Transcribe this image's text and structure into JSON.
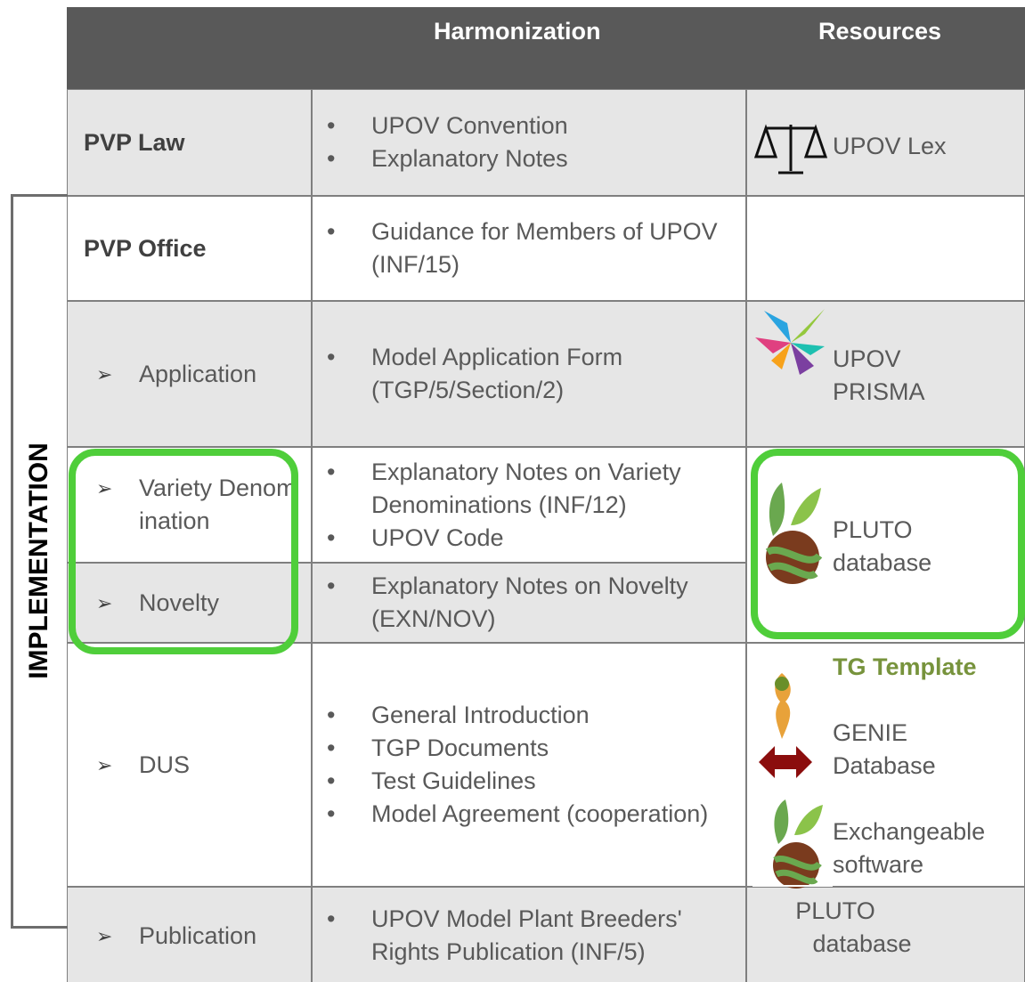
{
  "header": {
    "harmonization": "Harmonization",
    "resources": "Resources"
  },
  "side_label": "IMPLEMENTATION",
  "rows": [
    {
      "label": "PVP Law",
      "bullets": [
        "UPOV Convention",
        "Explanatory Notes"
      ],
      "resources": [
        "UPOV Lex"
      ]
    },
    {
      "label": "PVP Office",
      "bullets": [
        "Guidance for Members of UPOV (INF/15)"
      ],
      "resources": []
    },
    {
      "label": "Application",
      "bullets": [
        "Model Application Form (TGP/5/Section/2)"
      ],
      "resources": [
        "UPOV PRISMA"
      ]
    },
    {
      "label": "Variety Denomination",
      "bullets": [
        "Explanatory Notes on Variety Denominations (INF/12)",
        "UPOV Code"
      ],
      "resources": [
        "PLUTO database"
      ]
    },
    {
      "label": "Novelty",
      "bullets": [
        "Explanatory Notes on Novelty (EXN/NOV)"
      ],
      "resources": []
    },
    {
      "label": "DUS",
      "bullets": [
        "General Introduction",
        "TGP Documents",
        "Test Guidelines",
        "Model Agreement (cooperation)"
      ],
      "resources": [
        "TG Template",
        "GENIE Database",
        "Exchangeable software"
      ]
    },
    {
      "label": "Publication",
      "bullets": [
        "UPOV Model Plant Breeders' Rights Publication (INF/5)"
      ],
      "resources": [
        "PLUTO database"
      ]
    }
  ]
}
